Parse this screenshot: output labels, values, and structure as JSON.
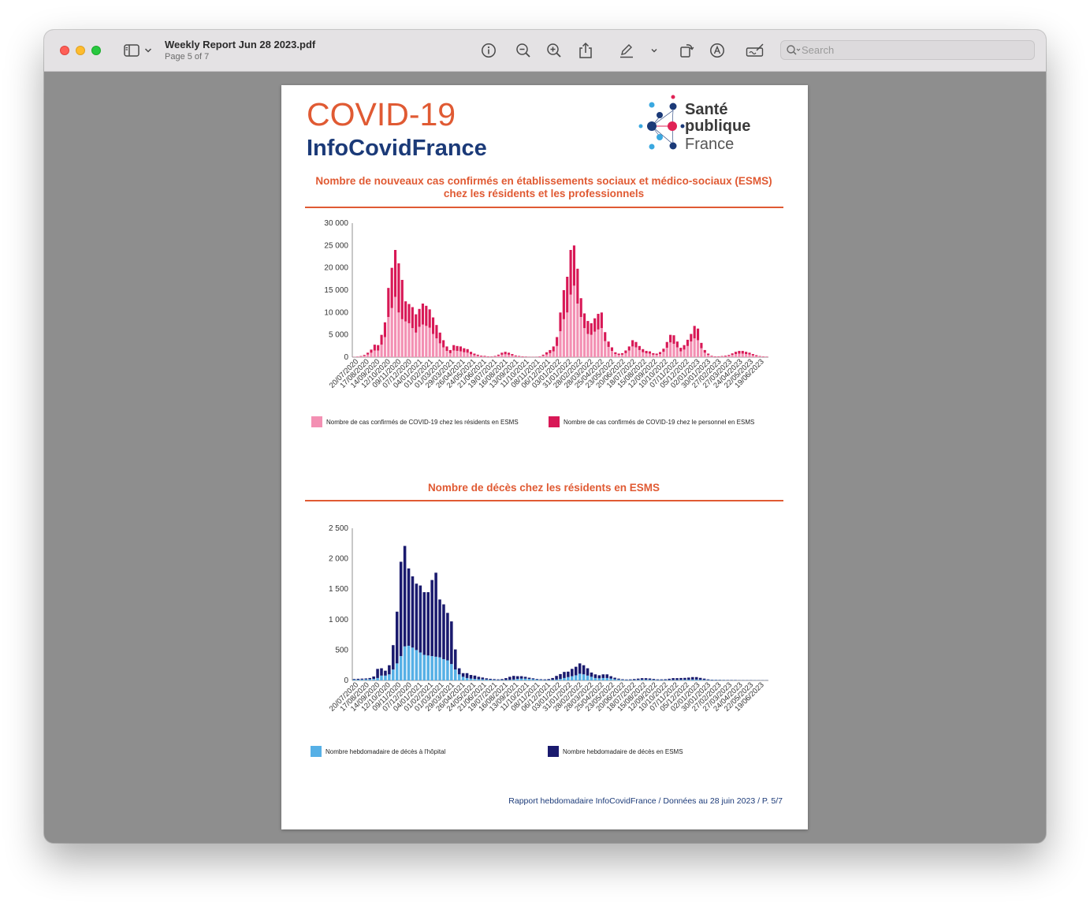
{
  "window": {
    "file_title": "Weekly Report Jun 28 2023.pdf",
    "page_indicator": "Page 5 of 7",
    "search_placeholder": "Search",
    "toolbar_icons": [
      "sidebar-icon",
      "chevron-down-icon",
      "info-icon",
      "zoom-out-icon",
      "zoom-in-icon",
      "share-icon",
      "markup-pen-icon",
      "chevron-down-icon",
      "rotate-icon",
      "markup-circle-icon",
      "signature-icon",
      "search-icon"
    ]
  },
  "page": {
    "title_line1": "COVID-19",
    "title_line2": "InfoCovidFrance",
    "logo": {
      "line1": "Santé",
      "line2": "publique",
      "line3": "France"
    },
    "footer": "Rapport hebdomadaire InfoCovidFrance / Données au 28 juin 2023 / P. 5/7",
    "colors": {
      "accent": "#e05a33",
      "navy": "#1b3a78",
      "pink": "#f390b3",
      "crimson": "#d81856",
      "lightblue": "#56b0e6",
      "darkblue": "#1a1a6e"
    }
  },
  "chart_data": [
    {
      "type": "bar",
      "stacked": true,
      "title": "Nombre de nouveaux cas confirmés en établissements sociaux et médico-sociaux (ESMS) chez les résidents et les professionnels",
      "ylim": [
        0,
        30000
      ],
      "yticks": [
        0,
        5000,
        10000,
        15000,
        20000,
        25000,
        30000
      ],
      "ytick_labels": [
        "0",
        "5 000",
        "10 000",
        "15 000",
        "20 000",
        "25 000",
        "30 000"
      ],
      "x_tick_labels": [
        "20/07/2020",
        "17/08/2020",
        "14/09/2020",
        "12/10/2020",
        "09/11/2020",
        "07/12/2020",
        "04/01/2021",
        "01/02/2021",
        "01/03/2021",
        "29/03/2021",
        "26/04/2021",
        "24/05/2021",
        "21/06/2021",
        "19/07/2021",
        "16/08/2021",
        "13/09/2021",
        "11/10/2021",
        "08/11/2021",
        "06/12/2021",
        "03/01/2022",
        "31/01/2022",
        "28/02/2022",
        "28/03/2022",
        "25/04/2022",
        "23/05/2022",
        "20/06/2022",
        "18/07/2022",
        "15/08/2022",
        "12/09/2022",
        "10/10/2022",
        "07/11/2022",
        "05/12/2022",
        "02/01/2023",
        "30/01/2023",
        "27/02/2023",
        "27/03/2023",
        "24/04/2023",
        "22/05/2023",
        "19/06/2023"
      ],
      "legend_position": "bottom",
      "series": [
        {
          "name": "Nombre de cas confirmés de COVID-19 chez les résidents en ESMS",
          "values": [
            50,
            80,
            150,
            300,
            600,
            1000,
            1500,
            1500,
            2800,
            4500,
            9000,
            11000,
            13500,
            10000,
            8500,
            8000,
            7600,
            6500,
            5500,
            6800,
            7300,
            7000,
            6600,
            5200,
            4200,
            3100,
            2200,
            1400,
            900,
            1500,
            1400,
            1300,
            1100,
            1000,
            650,
            450,
            300,
            200,
            160,
            100,
            80,
            150,
            320,
            550,
            650,
            560,
            380,
            230,
            150,
            100,
            80,
            60,
            50,
            60,
            100,
            320,
            600,
            900,
            1300,
            2500,
            5800,
            8500,
            10000,
            14000,
            16000,
            12000,
            9000,
            6500,
            5200,
            5000,
            5700,
            6200,
            6500,
            3600,
            2300,
            1400,
            700,
            500,
            550,
            900,
            1500,
            2400,
            2200,
            1600,
            1100,
            850,
            800,
            550,
            500,
            700,
            1200,
            2100,
            3300,
            3000,
            2200,
            1300,
            1700,
            2500,
            3500,
            4200,
            3800,
            2000,
            1000,
            500,
            200,
            100,
            100,
            150,
            200,
            300,
            500,
            700,
            800,
            800,
            700,
            600,
            400,
            250,
            150,
            100,
            80
          ]
        },
        {
          "name": "Nombre de cas confirmés de COVID-19 chez le personnel en ESMS",
          "values": [
            30,
            50,
            100,
            200,
            400,
            700,
            1300,
            1200,
            2200,
            3300,
            6500,
            9000,
            10500,
            11000,
            8800,
            4500,
            4300,
            4700,
            4100,
            4000,
            4700,
            4500,
            4100,
            3700,
            3000,
            2400,
            1600,
            1000,
            700,
            1200,
            1100,
            1100,
            900,
            800,
            550,
            350,
            250,
            150,
            130,
            80,
            70,
            120,
            240,
            450,
            550,
            440,
            320,
            170,
            120,
            80,
            60,
            40,
            40,
            40,
            80,
            230,
            500,
            700,
            1100,
            2000,
            4200,
            6500,
            8000,
            10000,
            9000,
            7800,
            4200,
            3300,
            2900,
            2600,
            3000,
            3500,
            3500,
            2000,
            1200,
            800,
            400,
            300,
            350,
            600,
            900,
            1400,
            1200,
            900,
            700,
            550,
            500,
            350,
            300,
            450,
            700,
            1300,
            1700,
            1900,
            1300,
            800,
            1000,
            1400,
            1700,
            2800,
            2600,
            1200,
            600,
            300,
            120,
            80,
            80,
            100,
            150,
            200,
            350,
            500,
            600,
            600,
            500,
            400,
            300,
            200,
            100,
            70,
            50
          ]
        }
      ]
    },
    {
      "type": "bar",
      "stacked": true,
      "title": "Nombre de décès chez les résidents en ESMS",
      "ylim": [
        0,
        2500
      ],
      "yticks": [
        0,
        500,
        1000,
        1500,
        2000,
        2500
      ],
      "ytick_labels": [
        "0",
        "500",
        "1 000",
        "1 500",
        "2 000",
        "2 500"
      ],
      "x_tick_labels": [
        "20/07/2020",
        "17/08/2020",
        "14/09/2020",
        "12/10/2020",
        "09/11/2020",
        "07/12/2020",
        "04/01/2021",
        "01/02/2021",
        "01/03/2021",
        "29/03/2021",
        "26/04/2021",
        "24/05/2021",
        "21/06/2021",
        "19/07/2021",
        "16/08/2021",
        "13/09/2021",
        "11/10/2021",
        "08/11/2021",
        "06/12/2021",
        "03/01/2022",
        "31/01/2022",
        "28/02/2022",
        "28/03/2022",
        "25/04/2022",
        "23/05/2022",
        "20/06/2022",
        "18/07/2022",
        "15/08/2022",
        "12/09/2022",
        "10/10/2022",
        "07/11/2022",
        "05/12/2022",
        "02/01/2023",
        "30/01/2023",
        "27/02/2023",
        "27/03/2023",
        "24/04/2023",
        "22/05/2023",
        "19/06/2023"
      ],
      "legend_position": "bottom",
      "series": [
        {
          "name": "Nombre hebdomadaire de décès à l'hôpital",
          "values": [
            15,
            12,
            15,
            18,
            20,
            25,
            40,
            80,
            80,
            100,
            180,
            280,
            400,
            560,
            570,
            540,
            500,
            460,
            420,
            410,
            400,
            390,
            380,
            350,
            330,
            270,
            180,
            100,
            60,
            40,
            30,
            25,
            20,
            18,
            15,
            12,
            10,
            8,
            8,
            8,
            10,
            15,
            25,
            30,
            30,
            25,
            20,
            15,
            10,
            8,
            8,
            10,
            15,
            25,
            40,
            55,
            70,
            85,
            110,
            100,
            80,
            60,
            40,
            35,
            40,
            40,
            30,
            20,
            15,
            10,
            8,
            8,
            8,
            10,
            12,
            12,
            12,
            10,
            8,
            8,
            8,
            8,
            8,
            8,
            10,
            12,
            12,
            15,
            15,
            12,
            10,
            8,
            6,
            6,
            5,
            5,
            4,
            4,
            4,
            3,
            3,
            3,
            3,
            3,
            2,
            2,
            2
          ]
        },
        {
          "name": "Nombre hebdomadaire de décès en ESMS",
          "values": [
            10,
            15,
            15,
            15,
            20,
            40,
            150,
            120,
            80,
            150,
            400,
            850,
            1550,
            1650,
            1270,
            1170,
            1090,
            1100,
            1030,
            1040,
            1250,
            1380,
            950,
            900,
            780,
            700,
            330,
            100,
            60,
            80,
            60,
            55,
            40,
            30,
            20,
            15,
            12,
            10,
            15,
            30,
            50,
            60,
            45,
            40,
            30,
            20,
            15,
            10,
            10,
            10,
            15,
            30,
            60,
            80,
            100,
            90,
            120,
            140,
            170,
            150,
            120,
            70,
            60,
            50,
            60,
            60,
            40,
            25,
            15,
            10,
            8,
            10,
            15,
            20,
            25,
            25,
            20,
            15,
            10,
            10,
            12,
            20,
            30,
            30,
            30,
            30,
            35,
            40,
            40,
            30,
            20,
            10,
            6,
            5,
            5,
            4,
            4,
            4,
            4,
            3,
            3,
            3,
            3,
            2,
            2,
            2,
            2
          ]
        }
      ]
    }
  ]
}
